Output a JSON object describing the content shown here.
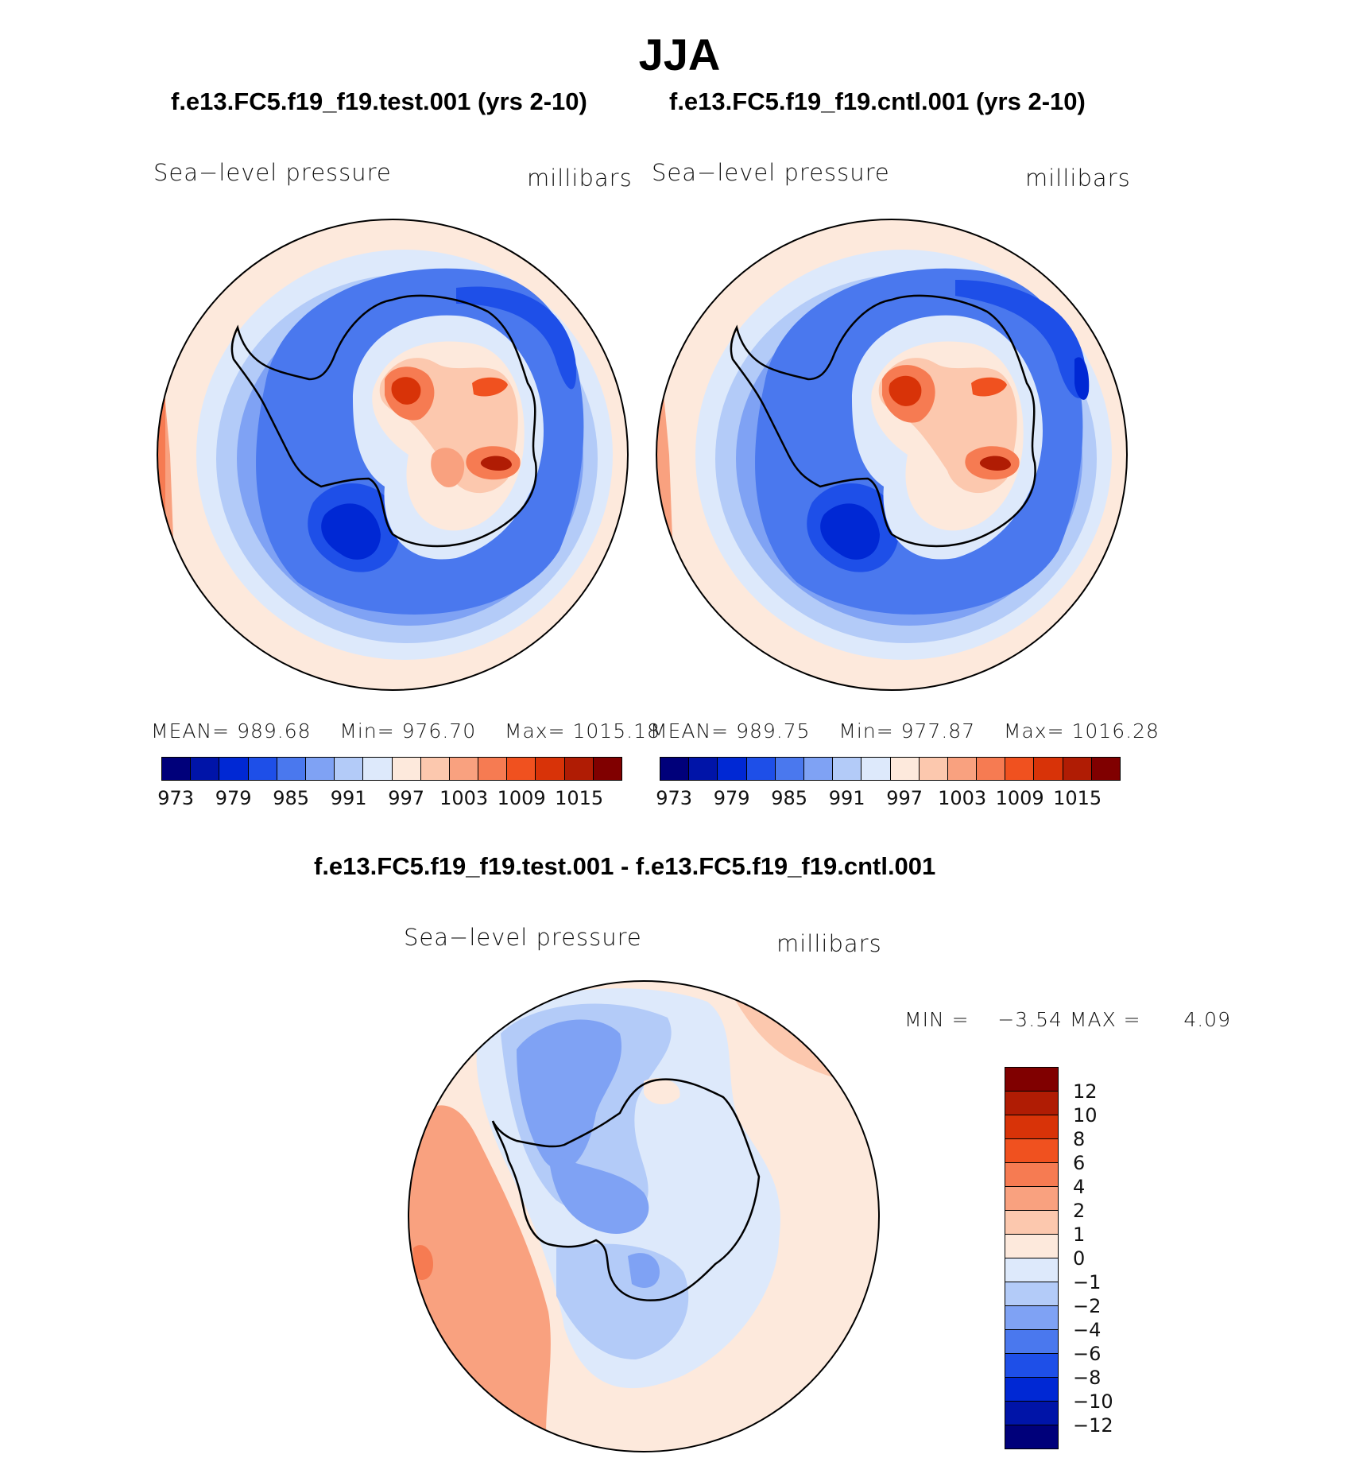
{
  "title": "JJA",
  "panels": [
    {
      "case": "f.e13.FC5.f19_f19.test.001 (yrs 2-10)",
      "variable": "Sea−level pressure",
      "units": "millibars",
      "mean_label": "MEAN=",
      "mean": "989.68",
      "min_label": "Min=",
      "min": "976.70",
      "max_label": "Max=",
      "max": "1015.18"
    },
    {
      "case": "f.e13.FC5.f19_f19.cntl.001 (yrs 2-10)",
      "variable": "Sea−level pressure",
      "units": "millibars",
      "mean_label": "MEAN=",
      "mean": "989.75",
      "min_label": "Min=",
      "min": "977.87",
      "max_label": "Max=",
      "max": "1016.28"
    }
  ],
  "colorbar": {
    "ticks": [
      "973",
      "979",
      "985",
      "991",
      "997",
      "1003",
      "1009",
      "1015"
    ],
    "colors": [
      "#00007a",
      "#0014a8",
      "#0028d4",
      "#1e4fe8",
      "#4a78ee",
      "#7fa2f4",
      "#b3cbf8",
      "#dde9fb",
      "#fde9dc",
      "#fcc8ae",
      "#f9a17f",
      "#f67b52",
      "#f0511f",
      "#d83308",
      "#b01c04",
      "#800000"
    ]
  },
  "diff": {
    "title": "f.e13.FC5.f19_f19.test.001 - f.e13.FC5.f19_f19.cntl.001",
    "variable": "Sea−level pressure",
    "units": "millibars",
    "min_label": "MIN =",
    "min": "−3.54",
    "max_label": "MAX =",
    "max": "4.09",
    "colorbar_ticks": [
      "12",
      "10",
      "8",
      "6",
      "4",
      "2",
      "1",
      "0",
      "−1",
      "−2",
      "−4",
      "−6",
      "−8",
      "−10",
      "−12"
    ],
    "colorbar_colors": [
      "#800000",
      "#b01c04",
      "#d83308",
      "#f0511f",
      "#f67b52",
      "#f9a17f",
      "#fcc8ae",
      "#fde9dc",
      "#dde9fb",
      "#b3cbf8",
      "#7fa2f4",
      "#4a78ee",
      "#1e4fe8",
      "#0028d4",
      "#0014a8",
      "#00007a"
    ]
  },
  "map_region": "Antarctica (South Pole stereographic)"
}
